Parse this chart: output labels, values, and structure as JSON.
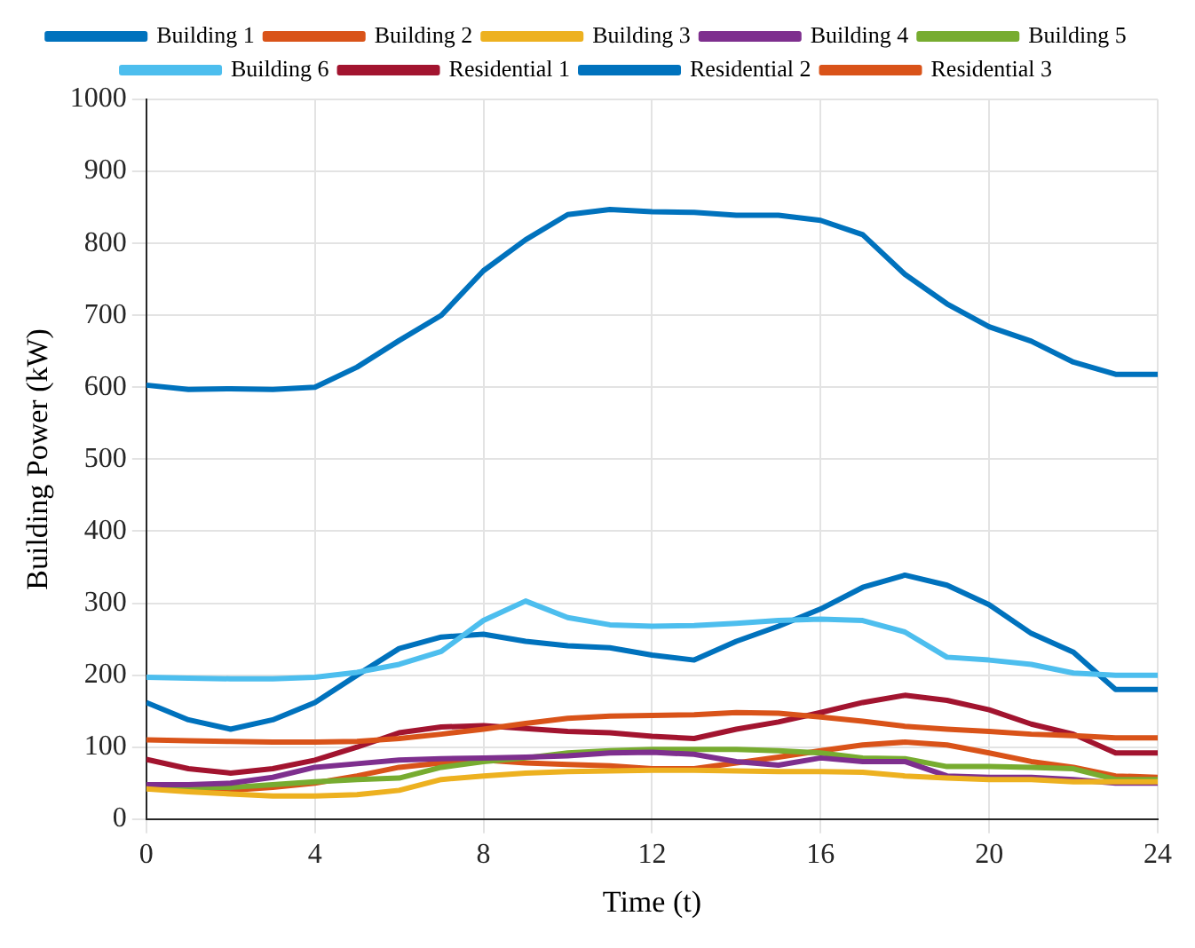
{
  "chart_data": {
    "type": "line",
    "xlabel": "Time (t)",
    "ylabel": "Building Power (kW)",
    "x": [
      0,
      1,
      2,
      3,
      4,
      5,
      6,
      7,
      8,
      9,
      10,
      11,
      12,
      13,
      14,
      15,
      16,
      17,
      18,
      19,
      20,
      21,
      22,
      23,
      24
    ],
    "xlim": [
      0,
      24
    ],
    "xticks": [
      0,
      4,
      8,
      12,
      16,
      20,
      24
    ],
    "ylim": [
      0,
      1000
    ],
    "yticks": [
      0,
      100,
      200,
      300,
      400,
      500,
      600,
      700,
      800,
      900,
      1000
    ],
    "grid": true,
    "legend": "top",
    "marker": "none",
    "line_style": "solid",
    "series": [
      {
        "name": "Building 1",
        "color": "#0072bd",
        "values": [
          603,
          597,
          598,
          597,
          600,
          628,
          665,
          700,
          762,
          805,
          840,
          847,
          844,
          843,
          839,
          839,
          832,
          812,
          757,
          716,
          684,
          664,
          635,
          618,
          618
        ]
      },
      {
        "name": "Building 2",
        "color": "#d95319",
        "values": [
          110,
          109,
          108,
          107,
          107,
          108,
          112,
          118,
          125,
          133,
          140,
          143,
          144,
          145,
          148,
          147,
          142,
          136,
          129,
          125,
          122,
          118,
          116,
          113,
          113
        ]
      },
      {
        "name": "Building 3",
        "color": "#edb120",
        "values": [
          42,
          38,
          35,
          32,
          32,
          34,
          40,
          55,
          60,
          64,
          66,
          67,
          68,
          68,
          67,
          66,
          66,
          65,
          60,
          57,
          55,
          55,
          52,
          52,
          52
        ]
      },
      {
        "name": "Building 4",
        "color": "#7e2f8e",
        "values": [
          48,
          48,
          50,
          58,
          72,
          77,
          82,
          84,
          85,
          86,
          88,
          92,
          93,
          90,
          80,
          75,
          85,
          80,
          80,
          60,
          58,
          58,
          55,
          50,
          50
        ]
      },
      {
        "name": "Building 5",
        "color": "#77ac30",
        "values": [
          45,
          44,
          44,
          48,
          52,
          55,
          57,
          72,
          80,
          85,
          92,
          95,
          97,
          97,
          97,
          95,
          92,
          85,
          84,
          73,
          73,
          72,
          70,
          55,
          55
        ]
      },
      {
        "name": "Building 6",
        "color": "#4dbeee",
        "values": [
          197,
          196,
          195,
          195,
          197,
          204,
          215,
          233,
          276,
          303,
          280,
          270,
          268,
          269,
          272,
          276,
          278,
          276,
          260,
          225,
          221,
          215,
          203,
          200,
          200
        ]
      },
      {
        "name": "Residential 1",
        "color": "#a2142f",
        "values": [
          83,
          70,
          64,
          70,
          82,
          100,
          120,
          128,
          130,
          126,
          122,
          120,
          115,
          112,
          125,
          135,
          148,
          162,
          172,
          165,
          152,
          132,
          118,
          92,
          92
        ]
      },
      {
        "name": "Residential 2",
        "color": "#0072bd",
        "values": [
          162,
          138,
          125,
          138,
          162,
          200,
          237,
          253,
          257,
          247,
          241,
          238,
          228,
          221,
          247,
          268,
          292,
          322,
          339,
          325,
          298,
          258,
          232,
          180,
          180
        ]
      },
      {
        "name": "Residential 3",
        "color": "#d95319",
        "values": [
          48,
          44,
          40,
          44,
          50,
          60,
          72,
          78,
          82,
          78,
          76,
          74,
          70,
          70,
          78,
          86,
          95,
          103,
          107,
          103,
          92,
          80,
          72,
          60,
          58
        ]
      }
    ]
  }
}
